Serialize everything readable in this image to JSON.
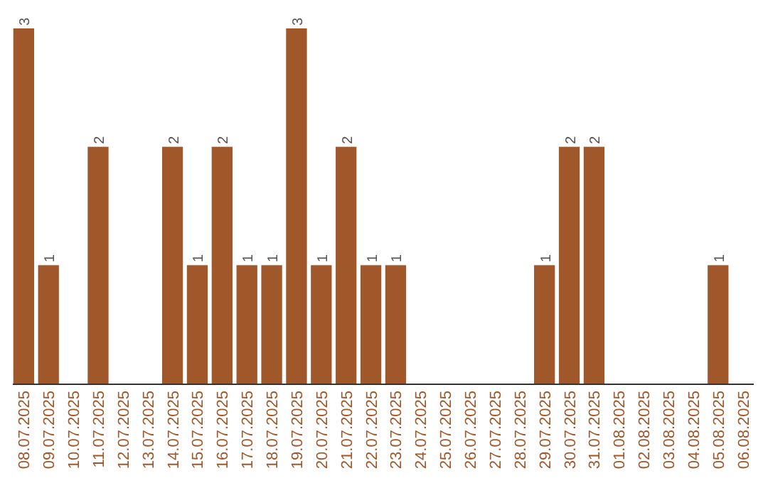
{
  "chart_data": {
    "type": "bar",
    "categories": [
      "08.07.2025",
      "09.07.2025",
      "10.07.2025",
      "11.07.2025",
      "12.07.2025",
      "13.07.2025",
      "14.07.2025",
      "15.07.2025",
      "16.07.2025",
      "17.07.2025",
      "18.07.2025",
      "19.07.2025",
      "20.07.2025",
      "21.07.2025",
      "22.07.2025",
      "23.07.2025",
      "24.07.2025",
      "25.07.2025",
      "26.07.2025",
      "27.07.2025",
      "28.07.2025",
      "29.07.2025",
      "30.07.2025",
      "31.07.2025",
      "01.08.2025",
      "02.08.2025",
      "03.08.2025",
      "04.08.2025",
      "05.08.2025",
      "06.08.2025"
    ],
    "values": [
      3,
      1,
      0,
      2,
      0,
      0,
      2,
      1,
      2,
      1,
      1,
      3,
      1,
      2,
      1,
      1,
      0,
      0,
      0,
      0,
      0,
      1,
      2,
      2,
      0,
      0,
      0,
      0,
      1,
      0
    ],
    "value_labels": [
      "3",
      "1",
      null,
      "2",
      null,
      null,
      "2",
      "1",
      "2",
      "1",
      "1",
      "3",
      "1",
      "2",
      "1",
      "1",
      null,
      null,
      null,
      null,
      null,
      "1",
      "2",
      "2",
      null,
      null,
      null,
      null,
      "1",
      null
    ],
    "color": "#a0582a",
    "ylim": [
      0,
      3
    ],
    "tick_labels": "x"
  }
}
